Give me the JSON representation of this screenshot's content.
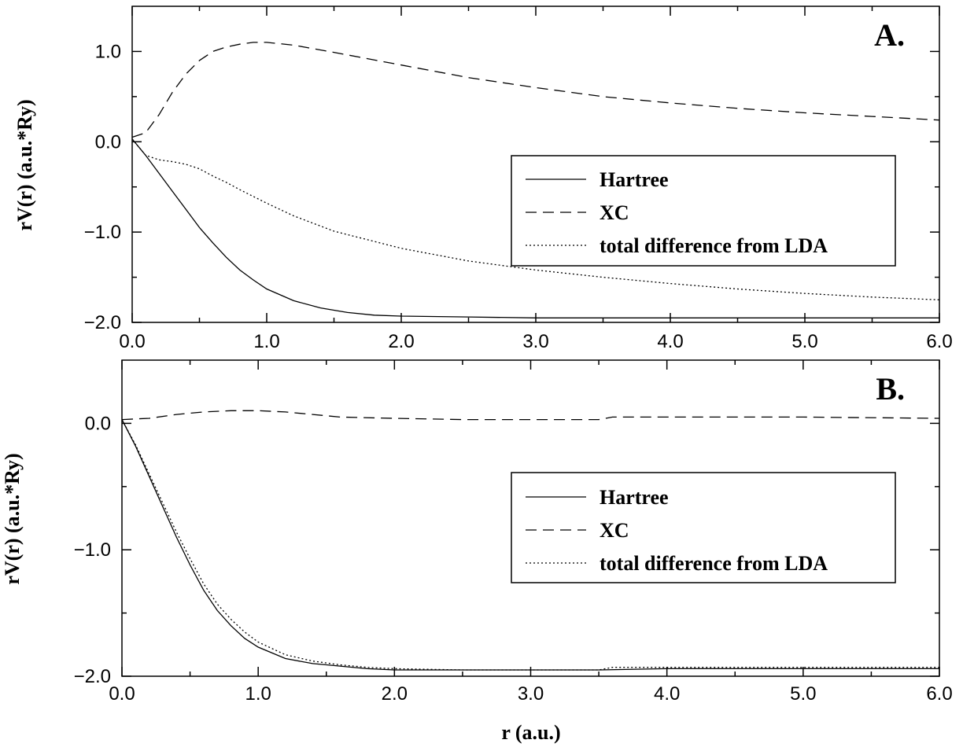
{
  "chart_data": [
    {
      "type": "line",
      "panel_label": "A.",
      "ylabel": "rV(r)  (a.u.*Ry)",
      "xlabel": "",
      "xlim": [
        0,
        6
      ],
      "ylim": [
        -2,
        1.5
      ],
      "x_ticks": [
        "0.0",
        "1.0",
        "2.0",
        "3.0",
        "4.0",
        "5.0",
        "6.0"
      ],
      "y_ticks": [
        "−2.0",
        "−1.0",
        "0.0",
        "1.0"
      ],
      "y_tick_values": [
        -2,
        -1,
        0,
        1
      ],
      "grid": false,
      "legend_position": "center-right",
      "series": [
        {
          "name": "Hartree",
          "style": "solid",
          "x": [
            0,
            0.1,
            0.2,
            0.3,
            0.4,
            0.5,
            0.6,
            0.7,
            0.8,
            0.9,
            1.0,
            1.2,
            1.4,
            1.6,
            1.8,
            2.0,
            2.5,
            3.0,
            3.5,
            4.0,
            5.0,
            6.0
          ],
          "y": [
            0.03,
            -0.15,
            -0.35,
            -0.55,
            -0.75,
            -0.95,
            -1.12,
            -1.28,
            -1.42,
            -1.53,
            -1.63,
            -1.76,
            -1.84,
            -1.89,
            -1.92,
            -1.93,
            -1.94,
            -1.95,
            -1.95,
            -1.95,
            -1.95,
            -1.95
          ]
        },
        {
          "name": "XC",
          "style": "dashed",
          "x": [
            0,
            0.1,
            0.2,
            0.3,
            0.4,
            0.5,
            0.6,
            0.7,
            0.8,
            0.9,
            1.0,
            1.2,
            1.5,
            2.0,
            2.5,
            3.0,
            3.5,
            4.0,
            4.5,
            5.0,
            5.5,
            6.0
          ],
          "y": [
            0.05,
            0.1,
            0.3,
            0.55,
            0.75,
            0.9,
            1.0,
            1.05,
            1.08,
            1.1,
            1.1,
            1.07,
            0.99,
            0.85,
            0.71,
            0.6,
            0.5,
            0.43,
            0.37,
            0.32,
            0.28,
            0.24
          ]
        },
        {
          "name": "total difference from LDA",
          "style": "dotted",
          "x": [
            0,
            0.1,
            0.2,
            0.3,
            0.4,
            0.5,
            0.6,
            0.7,
            0.8,
            1.0,
            1.2,
            1.5,
            2.0,
            2.5,
            3.0,
            3.5,
            4.0,
            4.5,
            5.0,
            5.5,
            6.0
          ],
          "y": [
            0.03,
            -0.15,
            -0.2,
            -0.22,
            -0.25,
            -0.3,
            -0.38,
            -0.45,
            -0.53,
            -0.68,
            -0.82,
            -0.99,
            -1.18,
            -1.32,
            -1.42,
            -1.5,
            -1.57,
            -1.63,
            -1.68,
            -1.72,
            -1.75
          ]
        }
      ]
    },
    {
      "type": "line",
      "panel_label": "B.",
      "ylabel": "rV(r)  (a.u.*Ry)",
      "xlabel": "r (a.u.)",
      "xlim": [
        0,
        6
      ],
      "ylim": [
        -2,
        0.5
      ],
      "x_ticks": [
        "0.0",
        "1.0",
        "2.0",
        "3.0",
        "4.0",
        "5.0",
        "6.0"
      ],
      "y_ticks": [
        "−2.0",
        "−1.0",
        "0.0"
      ],
      "y_tick_values": [
        -2,
        -1,
        0
      ],
      "grid": false,
      "legend_position": "center-right",
      "series": [
        {
          "name": "Hartree",
          "style": "solid",
          "x": [
            0,
            0.1,
            0.2,
            0.3,
            0.4,
            0.5,
            0.6,
            0.7,
            0.8,
            0.9,
            1.0,
            1.2,
            1.4,
            1.6,
            1.8,
            2.0,
            2.5,
            3.0,
            3.5,
            4.0,
            5.0,
            6.0
          ],
          "y": [
            0.03,
            -0.18,
            -0.42,
            -0.66,
            -0.9,
            -1.12,
            -1.32,
            -1.48,
            -1.6,
            -1.7,
            -1.77,
            -1.86,
            -1.9,
            -1.92,
            -1.94,
            -1.95,
            -1.95,
            -1.95,
            -1.95,
            -1.94,
            -1.94,
            -1.94
          ]
        },
        {
          "name": "XC",
          "style": "dashed",
          "x": [
            0,
            0.2,
            0.4,
            0.6,
            0.8,
            1.0,
            1.2,
            1.4,
            1.6,
            2.0,
            2.5,
            3.0,
            3.5,
            3.6,
            4.0,
            5.0,
            6.0
          ],
          "y": [
            0.03,
            0.04,
            0.07,
            0.09,
            0.1,
            0.1,
            0.09,
            0.07,
            0.05,
            0.04,
            0.03,
            0.03,
            0.03,
            0.05,
            0.05,
            0.05,
            0.04
          ]
        },
        {
          "name": "total difference from LDA",
          "style": "dotted",
          "x": [
            0,
            0.1,
            0.2,
            0.3,
            0.4,
            0.5,
            0.6,
            0.7,
            0.8,
            0.9,
            1.0,
            1.2,
            1.4,
            1.6,
            1.8,
            2.0,
            2.5,
            3.0,
            3.5,
            3.6,
            4.0,
            5.0,
            6.0
          ],
          "y": [
            0.03,
            -0.17,
            -0.4,
            -0.63,
            -0.86,
            -1.07,
            -1.27,
            -1.43,
            -1.55,
            -1.65,
            -1.73,
            -1.83,
            -1.88,
            -1.91,
            -1.93,
            -1.94,
            -1.95,
            -1.95,
            -1.95,
            -1.93,
            -1.93,
            -1.93,
            -1.93
          ]
        }
      ]
    }
  ]
}
